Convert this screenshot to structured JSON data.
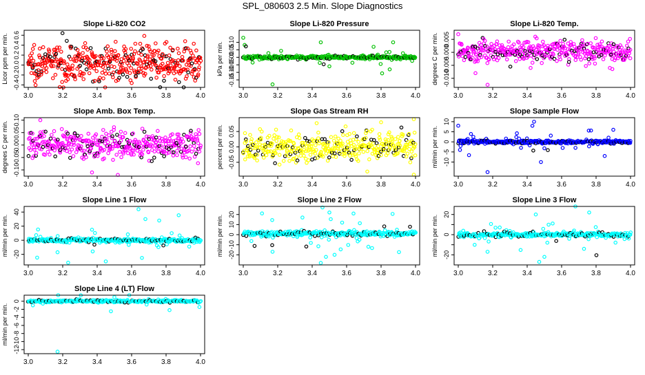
{
  "figure": {
    "title": "SPL_080603  2.5 Min. Slope Diagnostics"
  },
  "chart_data": [
    {
      "id": "co2",
      "type": "scatter",
      "title": "Slope Li-820 CO2",
      "ylabel": "Licor ppm per min.",
      "xlim": [
        3.0,
        4.0
      ],
      "ylim": [
        -0.45,
        0.7
      ],
      "x_ticks": [
        3.0,
        3.2,
        3.4,
        3.6,
        3.8,
        4.0
      ],
      "x_tick_labels": [
        "3.0",
        "3.2",
        "3.4",
        "3.6",
        "3.8",
        "4.0"
      ],
      "y_ticks": [
        -0.4,
        -0.2,
        0.0,
        0.2,
        0.4,
        0.6
      ],
      "y_tick_labels": [
        "-0.4",
        "-0.2",
        "0.0",
        "0.2",
        "0.4",
        "0.6"
      ],
      "color": "#ff0000",
      "highlight_color": "#000000",
      "n": 480,
      "spread": 0.3,
      "center": 0.05,
      "outlier_rate": 0.0,
      "outlier_scale": 0,
      "outliers": []
    },
    {
      "id": "pressure",
      "type": "scatter",
      "title": "Slope Li-820 Pressure",
      "ylabel": "kPa per min.",
      "xlim": [
        3.0,
        4.0
      ],
      "ylim": [
        -0.2,
        0.18
      ],
      "x_ticks": [
        3.0,
        3.2,
        3.4,
        3.6,
        3.8,
        4.0
      ],
      "x_tick_labels": [
        "3.0",
        "3.2",
        "3.4",
        "3.6",
        "3.8",
        "4.0"
      ],
      "y_ticks": [
        -0.15,
        -0.1,
        -0.05,
        0.0,
        0.05,
        0.1
      ],
      "y_tick_labels": [
        "-0.15",
        "-0.10",
        "-0.05",
        "0.00",
        "0.05",
        "0.10"
      ],
      "color": "#00c000",
      "highlight_color": "#000000",
      "n": 360,
      "spread": 0.01,
      "center": 0.0,
      "outlier_rate": 0.06,
      "outlier_scale": 0.06,
      "outliers": [
        [
          3.0,
          0.13
        ],
        [
          3.17,
          -0.18
        ],
        [
          3.45,
          0.1
        ],
        [
          3.87,
          0.1
        ],
        [
          3.85,
          -0.08
        ],
        [
          3.5,
          -0.06
        ]
      ]
    },
    {
      "id": "temp",
      "type": "scatter",
      "title": "Slope Li-820 Temp.",
      "ylabel": "degrees C per min.",
      "xlim": [
        3.0,
        4.0
      ],
      "ylim": [
        -0.0135,
        0.0085
      ],
      "x_ticks": [
        3.0,
        3.2,
        3.4,
        3.6,
        3.8,
        4.0
      ],
      "x_tick_labels": [
        "3.0",
        "3.2",
        "3.4",
        "3.6",
        "3.8",
        "4.0"
      ],
      "y_ticks": [
        -0.01,
        -0.005,
        0.0,
        0.005
      ],
      "y_tick_labels": [
        "-0.010",
        "-0.005",
        "0.000",
        "0.005"
      ],
      "color": "#ff00ff",
      "highlight_color": "#000000",
      "n": 420,
      "spread": 0.0035,
      "center": 0.0005,
      "outlier_rate": 0.0,
      "outlier_scale": 0,
      "outliers": [
        [
          3.17,
          -0.0125
        ],
        [
          3.0,
          0.007
        ],
        [
          3.1,
          -0.008
        ],
        [
          3.42,
          -0.006
        ],
        [
          3.88,
          -0.006
        ]
      ]
    },
    {
      "id": "boxtemp",
      "type": "scatter",
      "title": "Slope Amb. Box Temp.",
      "ylabel": "degrees C per min.",
      "xlim": [
        3.0,
        4.0
      ],
      "ylim": [
        -0.125,
        0.11
      ],
      "x_ticks": [
        3.0,
        3.2,
        3.4,
        3.6,
        3.8,
        4.0
      ],
      "x_tick_labels": [
        "3.0",
        "3.2",
        "3.4",
        "3.6",
        "3.8",
        "4.0"
      ],
      "y_ticks": [
        -0.1,
        -0.05,
        0.0,
        0.05,
        0.1
      ],
      "y_tick_labels": [
        "-0.10",
        "-0.05",
        "0.00",
        "0.05",
        "0.10"
      ],
      "color": "#ff00ff",
      "highlight_color": "#000000",
      "n": 420,
      "spread": 0.045,
      "center": 0.0,
      "outlier_rate": 0.0,
      "outlier_scale": 0,
      "outliers": [
        [
          3.07,
          0.1
        ],
        [
          3.52,
          -0.12
        ],
        [
          3.37,
          -0.11
        ]
      ]
    },
    {
      "id": "rh",
      "type": "scatter",
      "title": "Slope Gas Stream RH",
      "ylabel": "percent per min.",
      "xlim": [
        3.0,
        4.0
      ],
      "ylim": [
        -0.095,
        0.095
      ],
      "x_ticks": [
        3.0,
        3.2,
        3.4,
        3.6,
        3.8,
        4.0
      ],
      "x_tick_labels": [
        "3.0",
        "3.2",
        "3.4",
        "3.6",
        "3.8",
        "4.0"
      ],
      "y_ticks": [
        -0.05,
        0.0,
        0.05
      ],
      "y_tick_labels": [
        "-0.05",
        "0.00",
        "0.05"
      ],
      "color": "#ffff00",
      "highlight_color": "#000000",
      "n": 420,
      "spread": 0.04,
      "center": 0.0,
      "outlier_rate": 0.0,
      "outlier_scale": 0,
      "outliers": [
        [
          3.99,
          0.09
        ],
        [
          3.99,
          -0.09
        ],
        [
          3.72,
          -0.08
        ],
        [
          3.8,
          0.08
        ]
      ]
    },
    {
      "id": "sampleflow",
      "type": "scatter",
      "title": "Slope Sample Flow",
      "ylabel": "ml/min per min.",
      "xlim": [
        3.0,
        4.0
      ],
      "ylim": [
        -17,
        12
      ],
      "x_ticks": [
        3.0,
        3.2,
        3.4,
        3.6,
        3.8,
        4.0
      ],
      "x_tick_labels": [
        "3.0",
        "3.2",
        "3.4",
        "3.6",
        "3.8",
        "4.0"
      ],
      "y_ticks": [
        -10,
        -5,
        0,
        5,
        10
      ],
      "y_tick_labels": [
        "-10",
        "-5",
        "0",
        "5",
        "10"
      ],
      "color": "#0000ff",
      "highlight_color": "#000000",
      "n": 360,
      "spread": 0.8,
      "center": 0.0,
      "outlier_rate": 0.08,
      "outlier_scale": 4,
      "outliers": [
        [
          3.0,
          8
        ],
        [
          3.17,
          -15
        ],
        [
          3.44,
          10
        ],
        [
          3.48,
          -10
        ],
        [
          3.9,
          6
        ],
        [
          3.85,
          -7
        ],
        [
          3.01,
          -4
        ]
      ]
    },
    {
      "id": "line1",
      "type": "scatter",
      "title": "Slope Line 1 Flow",
      "ylabel": "ml/min per min.",
      "xlim": [
        3.0,
        4.0
      ],
      "ylim": [
        -35,
        48
      ],
      "x_ticks": [
        3.0,
        3.2,
        3.4,
        3.6,
        3.8,
        4.0
      ],
      "x_tick_labels": [
        "3.0",
        "3.2",
        "3.4",
        "3.6",
        "3.8",
        "4.0"
      ],
      "y_ticks": [
        -20,
        0,
        20,
        40
      ],
      "y_tick_labels": [
        "-20",
        "0",
        "20",
        "40"
      ],
      "color": "#00ffff",
      "highlight_color": "#000000",
      "n": 360,
      "spread": 2.5,
      "center": 0.0,
      "outlier_rate": 0.08,
      "outlier_scale": 12,
      "outliers": [
        [
          3.64,
          44
        ],
        [
          3.68,
          30
        ],
        [
          3.76,
          28
        ],
        [
          3.37,
          15
        ],
        [
          3.45,
          -30
        ],
        [
          3.66,
          -25
        ],
        [
          3.17,
          -17
        ]
      ]
    },
    {
      "id": "line2",
      "type": "scatter",
      "title": "Slope Line 2 Flow",
      "ylabel": "ml/min per min.",
      "xlim": [
        3.0,
        4.0
      ],
      "ylim": [
        -30,
        28
      ],
      "x_ticks": [
        3.0,
        3.2,
        3.4,
        3.6,
        3.8,
        4.0
      ],
      "x_tick_labels": [
        "3.0",
        "3.2",
        "3.4",
        "3.6",
        "3.8",
        "4.0"
      ],
      "y_ticks": [
        -20,
        -10,
        0,
        10,
        20
      ],
      "y_tick_labels": [
        "-20",
        "-10",
        "0",
        "10",
        "20"
      ],
      "color": "#00ffff",
      "highlight_color": "#000000",
      "n": 360,
      "spread": 2.0,
      "center": 1.0,
      "outlier_rate": 0.1,
      "outlier_scale": 9,
      "outliers": [
        [
          3.46,
          27
        ],
        [
          3.5,
          22
        ],
        [
          3.64,
          21
        ],
        [
          3.45,
          -28
        ],
        [
          3.48,
          -22
        ],
        [
          3.53,
          -20
        ],
        [
          3.17,
          -17
        ]
      ]
    },
    {
      "id": "line3",
      "type": "scatter",
      "title": "Slope Line 3 Flow",
      "ylabel": "ml/min per min.",
      "xlim": [
        3.0,
        4.0
      ],
      "ylim": [
        -30,
        28
      ],
      "x_ticks": [
        3.0,
        3.2,
        3.4,
        3.6,
        3.8,
        4.0
      ],
      "x_tick_labels": [
        "3.0",
        "3.2",
        "3.4",
        "3.6",
        "3.8",
        "4.0"
      ],
      "y_ticks": [
        -20,
        -10,
        0,
        10,
        20
      ],
      "y_tick_labels": [
        "-20",
        "",
        "0",
        "",
        "20"
      ],
      "color": "#00ffff",
      "highlight_color": "#000000",
      "n": 360,
      "spread": 2.0,
      "center": 0.0,
      "outlier_rate": 0.1,
      "outlier_scale": 8,
      "outliers": [
        [
          3.68,
          28
        ],
        [
          3.76,
          22
        ],
        [
          3.45,
          20
        ],
        [
          3.5,
          -22
        ],
        [
          3.47,
          -27
        ],
        [
          3.17,
          -17
        ],
        [
          3.73,
          -14
        ]
      ]
    },
    {
      "id": "line4",
      "type": "scatter",
      "title": "Slope Line 4 (LT) Flow",
      "ylabel": "ml/min per min.",
      "xlim": [
        3.0,
        4.0
      ],
      "ylim": [
        -13,
        1.5
      ],
      "x_ticks": [
        3.0,
        3.2,
        3.4,
        3.6,
        3.8,
        4.0
      ],
      "x_tick_labels": [
        "3.0",
        "3.2",
        "3.4",
        "3.6",
        "3.8",
        "4.0"
      ],
      "y_ticks": [
        -12,
        -10,
        -8,
        -6,
        -4,
        -2,
        0
      ],
      "y_tick_labels": [
        "-12",
        "-10",
        "-8",
        "-6",
        "-4",
        "-2",
        "0"
      ],
      "color": "#00ffff",
      "highlight_color": "#000000",
      "n": 300,
      "spread": 0.25,
      "center": 0.0,
      "outlier_rate": 0.03,
      "outlier_scale": 1.0,
      "outliers": [
        [
          3.17,
          -12.5
        ],
        [
          3.48,
          -2.5
        ],
        [
          3.82,
          -2.2
        ],
        [
          3.5,
          1.0
        ]
      ]
    }
  ]
}
